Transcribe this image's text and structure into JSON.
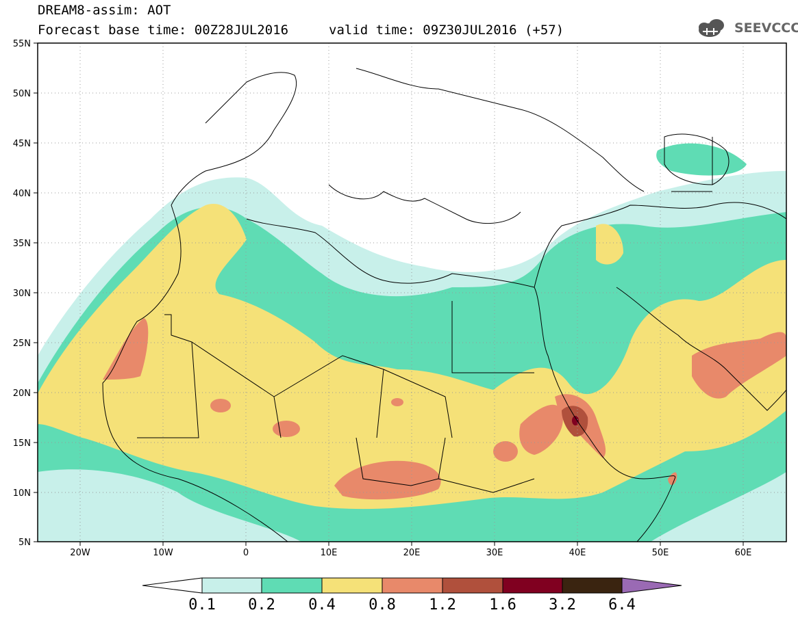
{
  "header": {
    "title": "DREAM8-assim: AOT",
    "base_time": "Forecast base time: 00Z28JUL2016",
    "valid_time": "valid time: 09Z30JUL2016 (+57)",
    "logo_text": "SEEVCCC"
  },
  "map": {
    "lon_range": [
      -25,
      65
    ],
    "lat_range": [
      5,
      55
    ],
    "x_ticks": [
      "20W",
      "10W",
      "0",
      "10E",
      "20E",
      "30E",
      "40E",
      "50E",
      "60E"
    ],
    "y_ticks": [
      "55N",
      "50N",
      "45N",
      "40N",
      "35N",
      "30N",
      "25N",
      "20N",
      "15N",
      "10N",
      "5N"
    ],
    "grid": "dotted"
  },
  "colorbar": {
    "labels": [
      "0.1",
      "0.2",
      "0.4",
      "0.8",
      "1.2",
      "1.6",
      "3.2",
      "6.4"
    ],
    "colors": [
      "#ffffff",
      "#c8f0ea",
      "#5fdcb4",
      "#f5e178",
      "#e8896a",
      "#b0503c",
      "#800020",
      "#3a2410",
      "#9a6ab4"
    ]
  },
  "levels": {
    "c1": "#c8f0ea",
    "c2": "#5fdcb4",
    "c3": "#f5e178",
    "c4": "#e8896a",
    "c5": "#b0503c",
    "c6": "#800020"
  }
}
